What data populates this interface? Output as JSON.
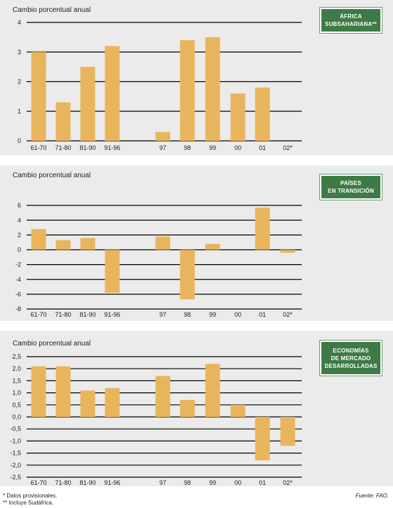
{
  "colors": {
    "bar": "#e9b55c",
    "grid": "#000000",
    "panel_bg": "#ebebeb",
    "tag_bg": "#3d7a45"
  },
  "footnotes": {
    "provisional": "* Datos provisionales.",
    "includes": "** Incluye Sudáfrica."
  },
  "source": "Fuente: FAO.",
  "chart_data": [
    {
      "type": "bar",
      "ylabel": "Cambio porcentual anual",
      "tag_lines": [
        "ÁFRICA",
        "SUBSAHARIANA**"
      ],
      "categories": [
        "61-70",
        "71-80",
        "81-90",
        "91-96",
        "",
        "97",
        "98",
        "99",
        "00",
        "01",
        "02*"
      ],
      "values": [
        3.0,
        1.3,
        2.5,
        3.2,
        null,
        0.3,
        3.4,
        3.5,
        1.6,
        1.8,
        null
      ],
      "ylim": [
        0,
        4
      ],
      "yticks": [
        0,
        1,
        2,
        3,
        4
      ],
      "ytick_labels": [
        "0",
        "1",
        "2",
        "3",
        "4"
      ],
      "grid": true
    },
    {
      "type": "bar",
      "ylabel": "Cambio porcentual anual",
      "tag_lines": [
        "PAÍSES",
        "EN TRANSICIÓN"
      ],
      "categories": [
        "61-70",
        "71-80",
        "81-90",
        "91-96",
        "",
        "97",
        "98",
        "99",
        "00",
        "01",
        "02*"
      ],
      "values": [
        2.8,
        1.3,
        1.6,
        -5.8,
        null,
        1.8,
        -6.7,
        0.8,
        0,
        5.7,
        -0.4
      ],
      "ylim": [
        -8,
        8
      ],
      "yticks": [
        -8,
        -6,
        -4,
        -2,
        0,
        2,
        4,
        6
      ],
      "ytick_labels": [
        "-8",
        "-6",
        "-4",
        "-2",
        "0",
        "2",
        "4",
        "6"
      ],
      "grid": true
    },
    {
      "type": "bar",
      "ylabel": "Cambio porcentual anual",
      "tag_lines": [
        "ECONOMÍAS",
        "DE MERCADO",
        "DESARROLLADAS"
      ],
      "categories": [
        "61-70",
        "71-80",
        "81-90",
        "91-96",
        "",
        "97",
        "98",
        "99",
        "00",
        "01",
        "02*"
      ],
      "values": [
        2.1,
        2.1,
        1.1,
        1.2,
        null,
        1.7,
        0.7,
        2.2,
        0.5,
        -1.8,
        -1.2
      ],
      "ylim": [
        -2.5,
        2.5
      ],
      "yticks": [
        -2.5,
        -2.0,
        -1.5,
        -1.0,
        -0.5,
        0.0,
        0.5,
        1.0,
        1.5,
        2.0,
        2.5
      ],
      "ytick_labels": [
        "-2,5",
        "-2,0",
        "-1,5",
        "-1,0",
        "-0,5",
        "0,0",
        "0,5",
        "1,0",
        "1,5",
        "2,0",
        "2,5"
      ],
      "grid": true
    }
  ]
}
